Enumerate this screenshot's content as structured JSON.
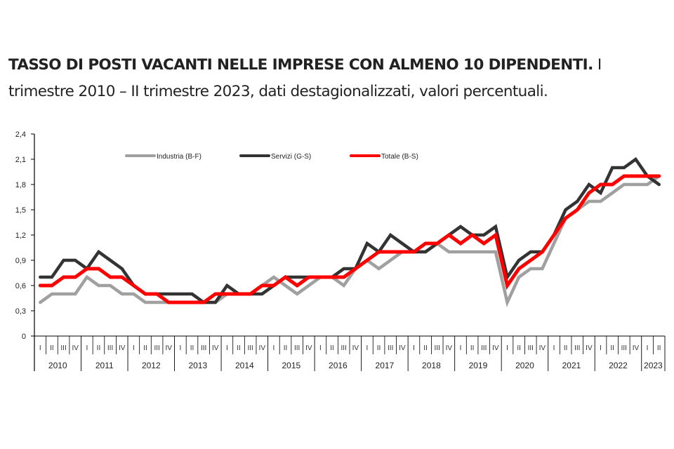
{
  "title": {
    "bold": "TASSO DI POSTI VACANTI NELLE IMPRESE CON ALMENO 10 DIPENDENTI.",
    "rest": " I trimestre 2010 – II trimestre 2023, dati destagionalizzati, valori percentuali."
  },
  "chart_data": {
    "type": "line",
    "title": "TASSO DI POSTI VACANTI NELLE IMPRESE CON ALMENO 10 DIPENDENTI. I trimestre 2010 – II trimestre 2023, dati destagionalizzati, valori percentuali.",
    "xlabel": "",
    "ylabel": "",
    "ylim": [
      0,
      2.4
    ],
    "yticks": [
      "0",
      "0,3",
      "0,6",
      "0,9",
      "1,2",
      "1,5",
      "1,8",
      "2,1",
      "2,4"
    ],
    "ytick_values": [
      0,
      0.3,
      0.6,
      0.9,
      1.2,
      1.5,
      1.8,
      2.1,
      2.4
    ],
    "grid": false,
    "legend_position": "top",
    "years": [
      "2010",
      "2011",
      "2012",
      "2013",
      "2014",
      "2015",
      "2016",
      "2017",
      "2018",
      "2019",
      "2020",
      "2021",
      "2022",
      "2023"
    ],
    "quarters_per_year": [
      4,
      4,
      4,
      4,
      4,
      4,
      4,
      4,
      4,
      4,
      4,
      4,
      4,
      2
    ],
    "quarter_labels": [
      "I",
      "II",
      "III",
      "IV"
    ],
    "series": [
      {
        "name": "Industria (B-F)",
        "color": "#a0a0a0",
        "values": [
          0.4,
          0.5,
          0.5,
          0.5,
          0.7,
          0.6,
          0.6,
          0.5,
          0.5,
          0.4,
          0.4,
          0.4,
          0.4,
          0.4,
          0.4,
          0.4,
          0.5,
          0.5,
          0.5,
          0.6,
          0.7,
          0.6,
          0.5,
          0.6,
          0.7,
          0.7,
          0.6,
          0.8,
          0.9,
          0.8,
          0.9,
          1.0,
          1.0,
          1.0,
          1.1,
          1.0,
          1.0,
          1.0,
          1.0,
          1.0,
          0.4,
          0.7,
          0.8,
          0.8,
          1.1,
          1.4,
          1.5,
          1.6,
          1.6,
          1.7,
          1.8,
          1.8,
          1.8,
          1.9
        ]
      },
      {
        "name": "Servizi (G-S)",
        "color": "#333333",
        "values": [
          0.7,
          0.7,
          0.9,
          0.9,
          0.8,
          1.0,
          0.9,
          0.8,
          0.6,
          0.5,
          0.5,
          0.5,
          0.5,
          0.5,
          0.4,
          0.4,
          0.6,
          0.5,
          0.5,
          0.5,
          0.6,
          0.7,
          0.7,
          0.7,
          0.7,
          0.7,
          0.8,
          0.8,
          1.1,
          1.0,
          1.2,
          1.1,
          1.0,
          1.0,
          1.1,
          1.2,
          1.3,
          1.2,
          1.2,
          1.3,
          0.7,
          0.9,
          1.0,
          1.0,
          1.2,
          1.5,
          1.6,
          1.8,
          1.7,
          2.0,
          2.0,
          2.1,
          1.9,
          1.8
        ]
      },
      {
        "name": "Totale (B-S)",
        "color": "#ff0000",
        "values": [
          0.6,
          0.6,
          0.7,
          0.7,
          0.8,
          0.8,
          0.7,
          0.7,
          0.6,
          0.5,
          0.5,
          0.4,
          0.4,
          0.4,
          0.4,
          0.5,
          0.5,
          0.5,
          0.5,
          0.6,
          0.6,
          0.7,
          0.6,
          0.7,
          0.7,
          0.7,
          0.7,
          0.8,
          0.9,
          1.0,
          1.0,
          1.0,
          1.0,
          1.1,
          1.1,
          1.2,
          1.1,
          1.2,
          1.1,
          1.2,
          0.6,
          0.8,
          0.9,
          1.0,
          1.2,
          1.4,
          1.5,
          1.7,
          1.8,
          1.8,
          1.9,
          1.9,
          1.9,
          1.9
        ]
      }
    ]
  }
}
